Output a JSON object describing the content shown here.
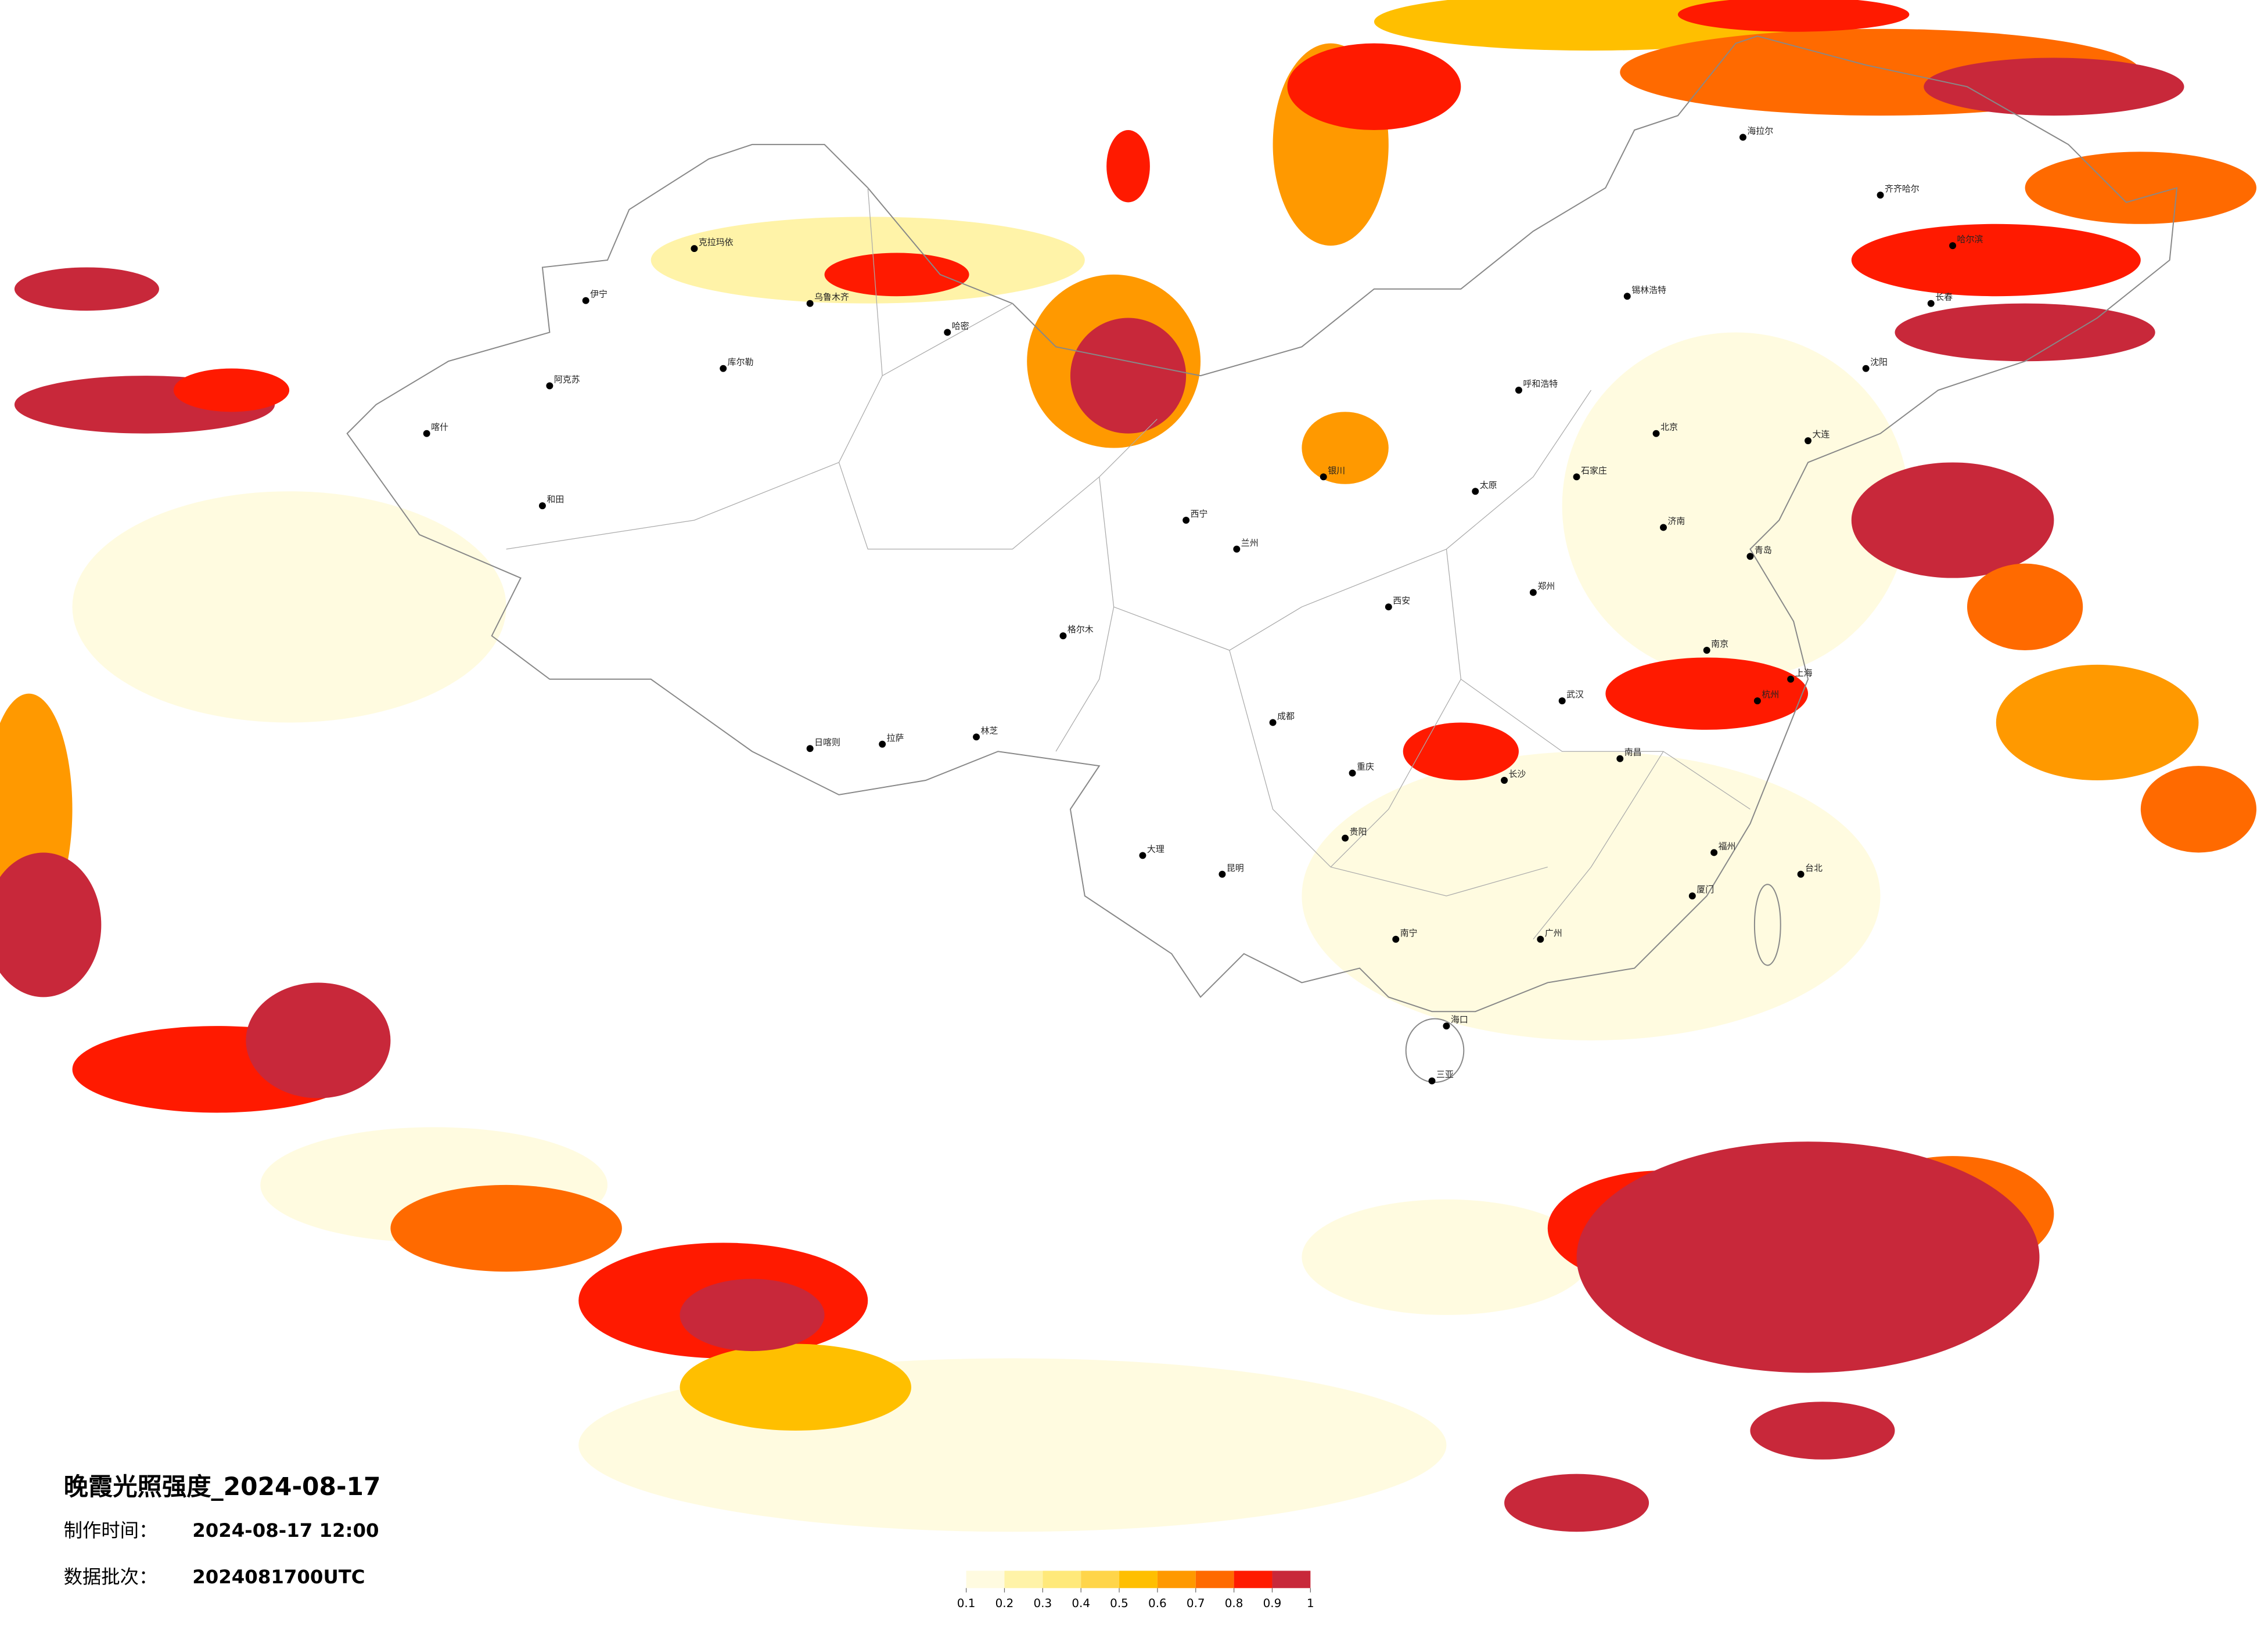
{
  "title": "晚霞光照强度_2024-08-17",
  "made_label": "制作时间：",
  "made_time": "2024-08-17 12:00",
  "batch_label": "数据批次：",
  "batch": "2024081700UTC",
  "legend": {
    "ticks": [
      0.1,
      0.2,
      0.3,
      0.4,
      0.5,
      0.6,
      0.7,
      0.8,
      0.9,
      1
    ],
    "colors": [
      "#fffbe0",
      "#fff3a8",
      "#ffe97a",
      "#ffd54a",
      "#ffbf00",
      "#ff9900",
      "#ff6a00",
      "#ff1a00",
      "#c8283a"
    ]
  },
  "cities": [
    "乌鲁木齐",
    "拉萨",
    "北京",
    "上海",
    "广州",
    "成都",
    "重庆",
    "武汉",
    "西安",
    "兰州",
    "哈尔滨",
    "长春",
    "沈阳",
    "昆明",
    "贵阳",
    "南宁",
    "海口",
    "台北",
    "呼和浩特",
    "银川",
    "西宁",
    "郑州",
    "长沙",
    "南昌",
    "福州",
    "杭州",
    "南京",
    "济南",
    "太原",
    "石家庄",
    "喀什",
    "和田",
    "阿克苏",
    "伊宁",
    "克拉玛依",
    "库尔勒",
    "哈密",
    "日喀则",
    "格尔木",
    "齐齐哈尔",
    "海拉尔",
    "锡林浩特",
    "大连",
    "青岛",
    "厦门",
    "三亚",
    "林芝",
    "大理"
  ]
}
